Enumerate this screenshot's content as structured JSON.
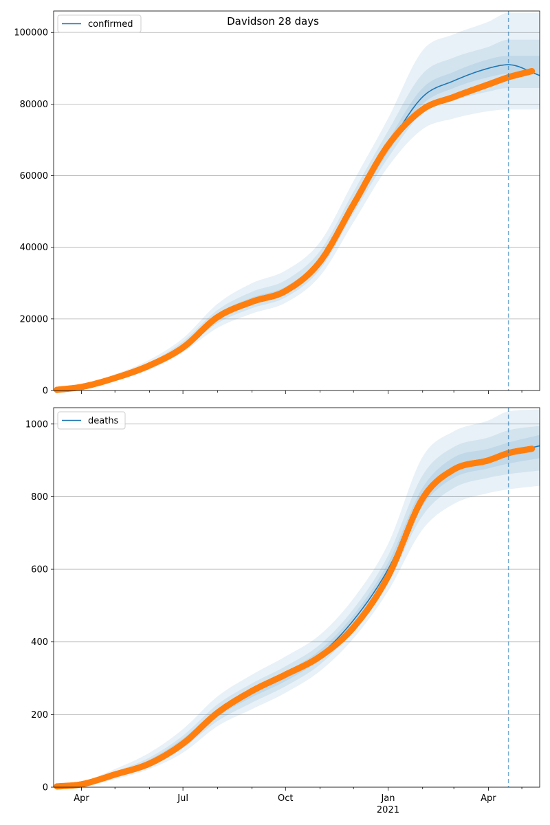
{
  "figure_title": "Davidson 28 days",
  "colors": {
    "model": "#1f77b4",
    "observed": "#ff7f0e",
    "band": "#1f77b4",
    "grid": "#b0b0b0",
    "forecast_line": "#1f77b4"
  },
  "chart_data": [
    {
      "type": "line",
      "legend": "confirmed",
      "legend_position": "top-left",
      "grid": "horizontal",
      "xlim": [
        "2020-03-07",
        "2021-05-17"
      ],
      "ylim": [
        0,
        106000
      ],
      "yticks": [
        0,
        20000,
        40000,
        60000,
        80000,
        100000
      ],
      "ytick_labels": [
        "0",
        "20000",
        "40000",
        "60000",
        "80000",
        "100000"
      ],
      "forecast_start": "2021-04-19",
      "model": {
        "x": [
          "2020-03-07",
          "2020-04-01",
          "2020-05-01",
          "2020-06-01",
          "2020-07-01",
          "2020-08-01",
          "2020-09-01",
          "2020-10-01",
          "2020-11-01",
          "2020-12-01",
          "2021-01-01",
          "2021-02-01",
          "2021-03-01",
          "2021-04-01",
          "2021-04-19",
          "2021-05-17"
        ],
        "y": [
          200,
          900,
          3500,
          7000,
          12500,
          20500,
          25000,
          28000,
          36000,
          52000,
          68000,
          82000,
          86500,
          90000,
          91000,
          88000
        ],
        "bands": [
          {
            "lower": [
              0,
              600,
              2700,
              5800,
              10700,
              17500,
              21500,
              24500,
              32000,
              47000,
              62500,
              73000,
              76000,
              78000,
              78500,
              78500
            ],
            "upper": [
              500,
              1300,
              4500,
              8600,
              14600,
              24200,
              30000,
              33500,
              41500,
              58500,
              76000,
              95000,
              99500,
              103000,
              105500,
              105500
            ]
          },
          {
            "lower": [
              100,
              750,
              3000,
              6300,
              11400,
              18800,
              23000,
              26000,
              33800,
              49500,
              65000,
              77500,
              81000,
              83500,
              84500,
              84500
            ],
            "upper": [
              350,
              1100,
              4000,
              7800,
              13700,
              22500,
              27600,
              30800,
              39000,
              55500,
              72500,
              88500,
              93000,
              96000,
              98000,
              98000
            ]
          },
          {
            "lower": [
              150,
              820,
              3250,
              6650,
              11900,
              19600,
              24000,
              27000,
              35000,
              50800,
              66500,
              80000,
              84500,
              87500,
              88500,
              88500
            ],
            "upper": [
              260,
              980,
              3750,
              7350,
              13100,
              21400,
              26000,
              29000,
              37100,
              53300,
              69800,
              84500,
              89000,
              92500,
              93500,
              93500
            ]
          }
        ]
      },
      "observed": {
        "x": [
          "2020-03-10",
          "2020-04-01",
          "2020-05-01",
          "2020-06-01",
          "2020-07-01",
          "2020-08-01",
          "2020-09-01",
          "2020-10-01",
          "2020-11-01",
          "2020-12-01",
          "2021-01-01",
          "2021-02-01",
          "2021-03-01",
          "2021-04-01",
          "2021-04-19",
          "2021-05-10"
        ],
        "y": [
          200,
          1000,
          3500,
          7000,
          12000,
          20500,
          24800,
          27800,
          36000,
          52000,
          68500,
          78500,
          82000,
          85500,
          87500,
          89200
        ]
      }
    },
    {
      "type": "line",
      "legend": "deaths",
      "legend_position": "top-left",
      "grid": "horizontal",
      "xlim": [
        "2020-03-07",
        "2021-05-17"
      ],
      "ylim": [
        0,
        1045
      ],
      "yticks": [
        0,
        200,
        400,
        600,
        800,
        1000
      ],
      "ytick_labels": [
        "0",
        "200",
        "400",
        "600",
        "800",
        "1000"
      ],
      "xticks": [
        "2020-04-01",
        "2020-07-01",
        "2020-10-01",
        "2021-01-01",
        "2021-04-01"
      ],
      "xtick_labels": [
        "Apr",
        "Jul",
        "Oct",
        "Jan",
        "Apr"
      ],
      "xtick_year": {
        "at": "2021-01-01",
        "label": "2021"
      },
      "forecast_start": "2021-04-19",
      "model": {
        "x": [
          "2020-03-07",
          "2020-04-01",
          "2020-05-01",
          "2020-06-01",
          "2020-07-01",
          "2020-08-01",
          "2020-09-01",
          "2020-10-01",
          "2020-11-01",
          "2020-12-01",
          "2021-01-01",
          "2021-02-01",
          "2021-03-01",
          "2021-04-01",
          "2021-04-19",
          "2021-05-17"
        ],
        "y": [
          2,
          8,
          35,
          70,
          125,
          205,
          260,
          305,
          365,
          460,
          600,
          800,
          880,
          905,
          920,
          940
        ],
        "bands": [
          {
            "lower": [
              0,
              2,
              22,
              50,
              95,
              168,
              215,
              260,
              320,
              410,
              540,
              710,
              780,
              810,
              820,
              830
            ],
            "upper": [
              5,
              15,
              50,
              95,
              160,
              250,
              310,
              360,
              420,
              520,
              670,
              910,
              980,
              1010,
              1035,
              1040
            ]
          },
          {
            "lower": [
              0,
              4,
              27,
              58,
              108,
              182,
              233,
              278,
              338,
              432,
              565,
              748,
              824,
              852,
              862,
              872
            ],
            "upper": [
              4,
              12,
              43,
              82,
              142,
              228,
              286,
              333,
              393,
              491,
              638,
              859,
              937,
              963,
              983,
              995
            ]
          },
          {
            "lower": [
              1,
              6,
              31,
              64,
              116,
              194,
              248,
              292,
              352,
              446,
              582,
              775,
              852,
              878,
              891,
              906
            ],
            "upper": [
              3,
              10,
              39,
              76,
              134,
              216,
              272,
              318,
              378,
              474,
              618,
              825,
              908,
              932,
              949,
              970
            ]
          }
        ]
      },
      "observed": {
        "x": [
          "2020-03-10",
          "2020-04-01",
          "2020-05-01",
          "2020-06-01",
          "2020-07-01",
          "2020-08-01",
          "2020-09-01",
          "2020-10-01",
          "2020-11-01",
          "2020-12-01",
          "2021-01-01",
          "2021-02-01",
          "2021-03-01",
          "2021-04-01",
          "2021-04-19",
          "2021-05-10"
        ],
        "y": [
          2,
          8,
          35,
          65,
          120,
          205,
          265,
          310,
          360,
          440,
          580,
          795,
          875,
          900,
          920,
          932
        ]
      }
    }
  ]
}
